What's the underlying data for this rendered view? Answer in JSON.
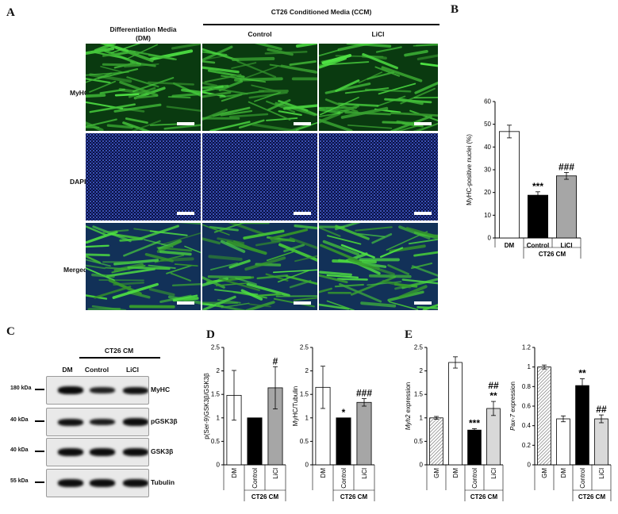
{
  "panels": {
    "A": "A",
    "B": "B",
    "C": "C",
    "D": "D",
    "E": "E"
  },
  "panelA": {
    "group_header": "CT26 Conditioned Media (CCM)",
    "col_dm": "Differentiation Media\n(DM)",
    "col_control": "Control",
    "col_licl": "LiCl",
    "row_myhc": "MyHC",
    "row_dapi": "DAPI",
    "row_merged": "Merged",
    "colors": {
      "myhc": "#1e8a28",
      "dapi": "#1c2d8c",
      "merged": "#1f6660"
    }
  },
  "panelC": {
    "group_header": "CT26 CM",
    "lanes": [
      "DM",
      "Control",
      "LiCl"
    ],
    "blots": [
      {
        "kda": "180 kDa",
        "label": "MyHC",
        "intensity": [
          0.9,
          0.5,
          0.75
        ]
      },
      {
        "kda": "40 kDa",
        "label": "pGSK3β",
        "intensity": [
          0.75,
          0.6,
          0.85
        ]
      },
      {
        "kda": "40 kDa",
        "label": "GSK3β",
        "intensity": [
          0.85,
          0.85,
          0.85
        ]
      },
      {
        "kda": "55 kDa",
        "label": "Tubulin",
        "intensity": [
          0.85,
          0.85,
          0.85
        ]
      }
    ]
  },
  "chart_data": [
    {
      "panel": "B",
      "type": "bar",
      "categories": [
        "DM",
        "Control",
        "LiCl"
      ],
      "values": [
        46.8,
        18.8,
        27.3
      ],
      "errors": [
        2.8,
        1.5,
        1.5
      ],
      "ylabel": "MyHC-positive nuclei (%)",
      "ylim": [
        0,
        60
      ],
      "yticks": [
        "0",
        "10",
        "20",
        "30",
        "40",
        "50",
        "60"
      ],
      "group_label": "CT26 CM",
      "bar_colors": [
        "#ffffff",
        "#000000",
        "#a6a6a6"
      ],
      "annotations": [
        "",
        "***",
        "###"
      ]
    },
    {
      "panel": "D1",
      "type": "bar",
      "categories": [
        "DM",
        "Control",
        "LiCl"
      ],
      "values": [
        1.48,
        1.0,
        1.64
      ],
      "errors": [
        0.53,
        0.0,
        0.45
      ],
      "ylabel": "p(Ser-9)GSK3β/GSK3β",
      "ylim": [
        0,
        2.5
      ],
      "yticks": [
        "0",
        "0.5",
        "1",
        "1.5",
        "2",
        "2.5"
      ],
      "group_label": "CT26 CM",
      "bar_colors": [
        "#ffffff",
        "#000000",
        "#a6a6a6"
      ],
      "annotations": [
        "",
        "",
        "#"
      ]
    },
    {
      "panel": "D2",
      "type": "bar",
      "categories": [
        "DM",
        "Control",
        "LiCl"
      ],
      "values": [
        1.65,
        1.0,
        1.33
      ],
      "errors": [
        0.45,
        0.0,
        0.08
      ],
      "ylabel": "MyHC/Tubulin",
      "ylim": [
        0,
        2.5
      ],
      "yticks": [
        "0",
        "0.5",
        "1",
        "1.5",
        "2",
        "2.5"
      ],
      "group_label": "CT26 CM",
      "bar_colors": [
        "#ffffff",
        "#000000",
        "#a6a6a6"
      ],
      "annotations": [
        "",
        "*",
        "###"
      ]
    },
    {
      "panel": "E1",
      "type": "bar",
      "categories": [
        "GM",
        "DM",
        "Control",
        "LiCl"
      ],
      "values": [
        1.0,
        2.18,
        0.74,
        1.2
      ],
      "errors": [
        0.03,
        0.12,
        0.03,
        0.15
      ],
      "ylabel_italic": "Myh2",
      "ylabel": " expression",
      "ylim": [
        0,
        2.5
      ],
      "yticks": [
        "0",
        "0.5",
        "1",
        "1.5",
        "2",
        "2.5"
      ],
      "group_label": "CT26 CM",
      "bar_colors": [
        "hatch",
        "#ffffff",
        "#000000",
        "#d9d9d9"
      ],
      "annotations": [
        "",
        "",
        "***",
        "##\n**"
      ]
    },
    {
      "panel": "E2",
      "type": "bar",
      "categories": [
        "GM",
        "DM",
        "Control",
        "LiCl"
      ],
      "values": [
        1.0,
        0.47,
        0.81,
        0.47
      ],
      "errors": [
        0.02,
        0.03,
        0.07,
        0.04
      ],
      "ylabel_italic": "Pax-7",
      "ylabel": " expression",
      "ylim": [
        0,
        1.2
      ],
      "yticks": [
        "0",
        "0.2",
        "0.4",
        "0.6",
        "0.8",
        "1",
        "1.2"
      ],
      "group_label": "CT26 CM",
      "bar_colors": [
        "hatch",
        "#ffffff",
        "#000000",
        "#d9d9d9"
      ],
      "annotations": [
        "",
        "",
        "**",
        "##"
      ]
    }
  ]
}
